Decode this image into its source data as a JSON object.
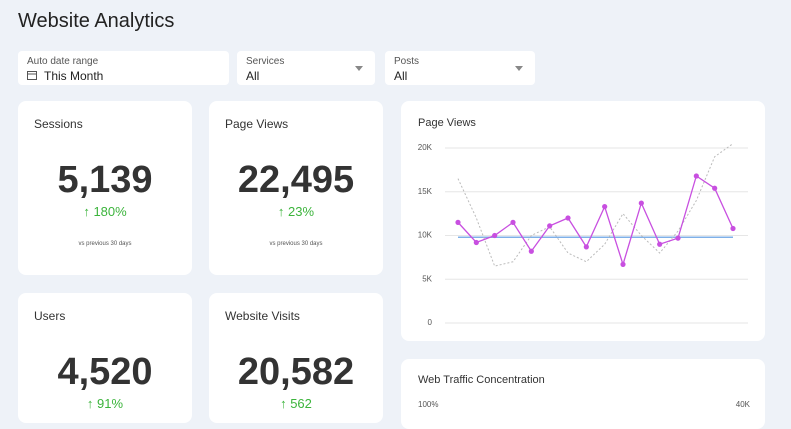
{
  "header": {
    "title": "Website Analytics"
  },
  "filters": [
    {
      "label": "Auto date range",
      "value": "This Month"
    },
    {
      "label": "Services",
      "value": "All"
    },
    {
      "label": "Posts",
      "value": "All"
    }
  ],
  "kpis": [
    {
      "title": "Sessions",
      "value": "5,139",
      "change": "180%",
      "note": "vs previous 30 days"
    },
    {
      "title": "Page Views",
      "value": "22,495",
      "change": "23%",
      "note": "vs previous 30 days"
    },
    {
      "title": "Users",
      "value": "4,520",
      "change": "91%"
    },
    {
      "title": "Website Visits",
      "value": "20,582",
      "change": "562"
    }
  ],
  "chart_data": {
    "type": "line",
    "title": "Page Views",
    "categories": [
      null,
      null,
      null,
      null,
      null,
      null,
      null,
      null,
      null,
      null,
      null,
      null,
      null,
      null,
      null,
      null
    ],
    "series": [
      {
        "color": "#c84fe0",
        "values": [
          11500,
          9200,
          10000,
          11500,
          8200,
          11100,
          12000,
          8700,
          13300,
          6700,
          13700,
          9000,
          9700,
          16800,
          15400,
          10800
        ]
      },
      {
        "color": "#bbbbbb",
        "dashed": true,
        "values": [
          16500,
          12000,
          6500,
          7000,
          10000,
          11000,
          8000,
          7000,
          9000,
          12500,
          10000,
          8000,
          10500,
          14000,
          19000,
          20500
        ]
      }
    ],
    "reference_line": {
      "value": 9800,
      "color": "#7fb0e8"
    },
    "ylim": [
      0,
      20000
    ],
    "yticks": [
      0,
      {
        "value": 5000,
        "label": "5K"
      },
      {
        "value": 10000,
        "label": "10K"
      },
      {
        "value": 15000,
        "label": "15K"
      },
      {
        "value": 20000,
        "label": "20K"
      }
    ],
    "grid": true
  },
  "traffic_chart": {
    "title": "Web Traffic Concentration",
    "yticks": [
      {
        "value": 100,
        "label": "100%"
      }
    ],
    "y2ticks": [
      {
        "value": 40000,
        "label": "40K"
      }
    ]
  }
}
